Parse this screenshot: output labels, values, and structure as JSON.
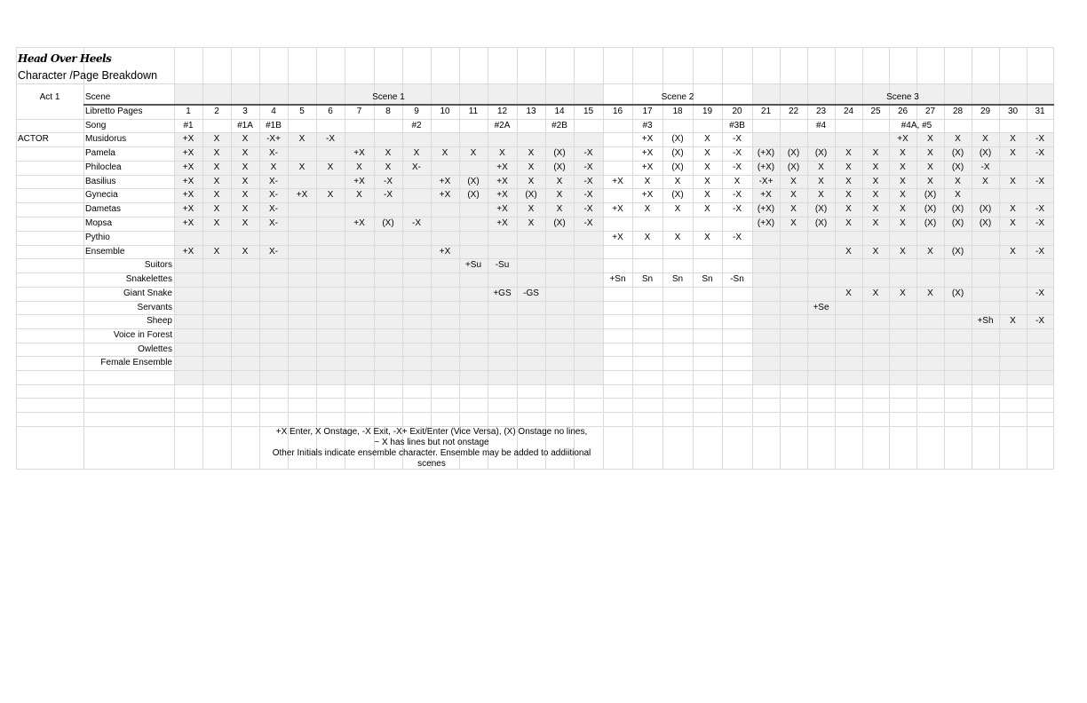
{
  "document": {
    "title": "Head Over Heels",
    "subtitle": "Character /Page Breakdown"
  },
  "header": {
    "act_label": "Act 1",
    "scene_label": "Scene",
    "libretto_label": "Libretto Pages",
    "song_label": "Song",
    "actor_label": "ACTOR"
  },
  "scenes": [
    {
      "name": "Scene 1",
      "from": 1,
      "to": 15,
      "shaded": true
    },
    {
      "name": "Scene 2",
      "from": 16,
      "to": 20,
      "shaded": false
    },
    {
      "name": "Scene 3",
      "from": 21,
      "to": 31,
      "shaded": true
    }
  ],
  "pages": [
    "1",
    "2",
    "3",
    "4",
    "5",
    "6",
    "7",
    "8",
    "9",
    "10",
    "11",
    "12",
    "13",
    "14",
    "15",
    "16",
    "17",
    "18",
    "19",
    "20",
    "21",
    "22",
    "23",
    "24",
    "25",
    "26",
    "27",
    "28",
    "29",
    "30",
    "31"
  ],
  "songs": [
    "#1",
    "",
    "#1A",
    "#1B",
    "",
    "",
    "",
    "",
    "#2",
    "",
    "",
    "#2A",
    "",
    "#2B",
    "",
    "",
    "#3",
    "",
    "",
    "#3B",
    "",
    "",
    "#4",
    "",
    "",
    "#4A, #5",
    "",
    "",
    "",
    "",
    ""
  ],
  "characters": [
    {
      "name": "Musidorus",
      "align": "left",
      "cells": [
        "+X",
        "X",
        "X",
        "-X+",
        "X",
        "-X",
        "",
        "",
        "",
        "",
        "",
        "",
        "",
        "",
        "",
        "",
        "+X",
        "(X)",
        "X",
        "-X",
        "",
        "",
        "",
        "",
        "",
        "+X",
        "X",
        "X",
        "X",
        "X",
        "-X"
      ]
    },
    {
      "name": "Pamela",
      "align": "left",
      "cells": [
        "+X",
        "X",
        "X",
        "X-",
        "",
        "",
        "+X",
        "X",
        "X",
        "X",
        "X",
        "X",
        "X",
        "(X)",
        "-X",
        "",
        "+X",
        "(X)",
        "X",
        "-X",
        "(+X)",
        "(X)",
        "(X)",
        "X",
        "X",
        "X",
        "X",
        "(X)",
        "(X)",
        "X",
        "-X"
      ]
    },
    {
      "name": "Philoclea",
      "align": "left",
      "cells": [
        "+X",
        "X",
        "X",
        "X",
        "X",
        "X",
        "X",
        "X",
        "X-",
        "",
        "",
        "+X",
        "X",
        "(X)",
        "-X",
        "",
        "+X",
        "(X)",
        "X",
        "-X",
        "(+X)",
        "(X)",
        "X",
        "X",
        "X",
        "X",
        "X",
        "(X)",
        "-X",
        "",
        ""
      ]
    },
    {
      "name": "Basilius",
      "align": "left",
      "cells": [
        "+X",
        "X",
        "X",
        "X-",
        "",
        "",
        "+X",
        "-X",
        "",
        "+X",
        "(X)",
        "+X",
        "X",
        "X",
        "-X",
        "+X",
        "X",
        "X",
        "X",
        "X",
        "-X+",
        "X",
        "X",
        "X",
        "X",
        "X",
        "X",
        "X",
        "X",
        "X",
        "-X"
      ]
    },
    {
      "name": "Gynecia",
      "align": "left",
      "cells": [
        "+X",
        "X",
        "X",
        "X-",
        "+X",
        "X",
        "X",
        "-X",
        "",
        "+X",
        "(X)",
        "+X",
        "(X)",
        "X",
        "-X",
        "",
        "+X",
        "(X)",
        "X",
        "-X",
        "+X",
        "X",
        "X",
        "X",
        "X",
        "X",
        "(X)",
        "X",
        "",
        "",
        ""
      ]
    },
    {
      "name": "Dametas",
      "align": "left",
      "cells": [
        "+X",
        "X",
        "X",
        "X-",
        "",
        "",
        "",
        "",
        "",
        "",
        "",
        "+X",
        "X",
        "X",
        "-X",
        "+X",
        "X",
        "X",
        "X",
        "-X",
        "(+X)",
        "X",
        "(X)",
        "X",
        "X",
        "X",
        "(X)",
        "(X)",
        "(X)",
        "X",
        "-X"
      ]
    },
    {
      "name": "Mopsa",
      "align": "left",
      "cells": [
        "+X",
        "X",
        "X",
        "X-",
        "",
        "",
        "+X",
        "(X)",
        "-X",
        "",
        "",
        "+X",
        "X",
        "(X)",
        "-X",
        "",
        "",
        "",
        "",
        "",
        "(+X)",
        "X",
        "(X)",
        "X",
        "X",
        "X",
        "(X)",
        "(X)",
        "(X)",
        "X",
        "-X"
      ]
    },
    {
      "name": "Pythio",
      "align": "left",
      "cells": [
        "",
        "",
        "",
        "",
        "",
        "",
        "",
        "",
        "",
        "",
        "",
        "",
        "",
        "",
        "",
        "+X",
        "X",
        "X",
        "X",
        "-X",
        "",
        "",
        "",
        "",
        "",
        "",
        "",
        "",
        "",
        "",
        ""
      ]
    },
    {
      "name": "Ensemble",
      "align": "left",
      "cells": [
        "+X",
        "X",
        "X",
        "X-",
        "",
        "",
        "",
        "",
        "",
        "+X",
        "",
        "",
        "",
        "",
        "",
        "",
        "",
        "",
        "",
        "",
        "",
        "",
        "",
        "X",
        "X",
        "X",
        "X",
        "(X)",
        "",
        "X",
        "-X"
      ]
    },
    {
      "name": "Suitors",
      "align": "right",
      "cells": [
        "",
        "",
        "",
        "",
        "",
        "",
        "",
        "",
        "",
        "",
        "+Su",
        "-Su",
        "",
        "",
        "",
        "",
        "",
        "",
        "",
        "",
        "",
        "",
        "",
        "",
        "",
        "",
        "",
        "",
        "",
        "",
        ""
      ]
    },
    {
      "name": "Snakelettes",
      "align": "right",
      "cells": [
        "",
        "",
        "",
        "",
        "",
        "",
        "",
        "",
        "",
        "",
        "",
        "",
        "",
        "",
        "",
        "+Sn",
        "Sn",
        "Sn",
        "Sn",
        "-Sn",
        "",
        "",
        "",
        "",
        "",
        "",
        "",
        "",
        "",
        "",
        ""
      ]
    },
    {
      "name": "Giant Snake",
      "align": "right",
      "cells": [
        "",
        "",
        "",
        "",
        "",
        "",
        "",
        "",
        "",
        "",
        "",
        "+GS",
        "-GS",
        "",
        "",
        "",
        "",
        "",
        "",
        "",
        "",
        "",
        "",
        "X",
        "X",
        "X",
        "X",
        "(X)",
        "",
        "",
        "-X"
      ]
    },
    {
      "name": "Servants",
      "align": "right",
      "cells": [
        "",
        "",
        "",
        "",
        "",
        "",
        "",
        "",
        "",
        "",
        "",
        "",
        "",
        "",
        "",
        "",
        "",
        "",
        "",
        "",
        "",
        "",
        "+Se",
        "",
        "",
        "",
        "",
        "",
        "",
        "",
        ""
      ]
    },
    {
      "name": "Sheep",
      "align": "right",
      "cells": [
        "",
        "",
        "",
        "",
        "",
        "",
        "",
        "",
        "",
        "",
        "",
        "",
        "",
        "",
        "",
        "",
        "",
        "",
        "",
        "",
        "",
        "",
        "",
        "",
        "",
        "",
        "",
        "",
        "+Sh",
        "X",
        "-X"
      ]
    },
    {
      "name": "Voice in Forest",
      "align": "right",
      "cells": [
        "",
        "",
        "",
        "",
        "",
        "",
        "",
        "",
        "",
        "",
        "",
        "",
        "",
        "",
        "",
        "",
        "",
        "",
        "",
        "",
        "",
        "",
        "",
        "",
        "",
        "",
        "",
        "",
        "",
        "",
        ""
      ]
    },
    {
      "name": "Owlettes",
      "align": "right",
      "cells": [
        "",
        "",
        "",
        "",
        "",
        "",
        "",
        "",
        "",
        "",
        "",
        "",
        "",
        "",
        "",
        "",
        "",
        "",
        "",
        "",
        "",
        "",
        "",
        "",
        "",
        "",
        "",
        "",
        "",
        "",
        ""
      ]
    },
    {
      "name": "Female Ensemble",
      "align": "right",
      "cells": [
        "",
        "",
        "",
        "",
        "",
        "",
        "",
        "",
        "",
        "",
        "",
        "",
        "",
        "",
        "",
        "",
        "",
        "",
        "",
        "",
        "",
        "",
        "",
        "",
        "",
        "",
        "",
        "",
        "",
        "",
        ""
      ]
    }
  ],
  "legend": [
    "+X Enter, X Onstage,  -X Exit, -X+ Exit/Enter (Vice Versa), (X) Onstage no lines,",
    "~ X has lines but not onstage",
    "Other Initials indicate ensemble character. Ensemble may be added to addiitional",
    "scenes"
  ],
  "colors": {
    "shade": "#efefef",
    "gridline": "#dadada",
    "header_rule": "#555555"
  }
}
